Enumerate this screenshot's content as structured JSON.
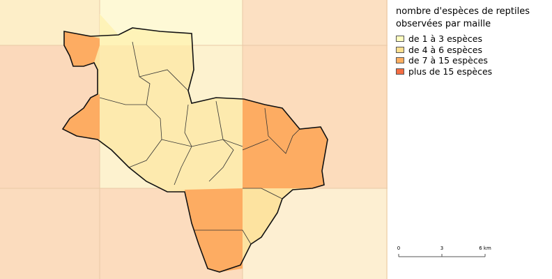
{
  "legend": {
    "title": "nombre d'espèces de reptiles observées par maille",
    "items": [
      {
        "label": "de 1 à 3 espèces",
        "color": "#ffffbf"
      },
      {
        "label": "de 4 à 6 espèces",
        "color": "#fedf8f"
      },
      {
        "label": "de 7 à 15 espèces",
        "color": "#fdae61"
      },
      {
        "label": "plus de 15 espèces",
        "color": "#f46d43"
      }
    ]
  },
  "scale_bar": {
    "labels": [
      "0",
      "3",
      "6 km"
    ]
  }
}
